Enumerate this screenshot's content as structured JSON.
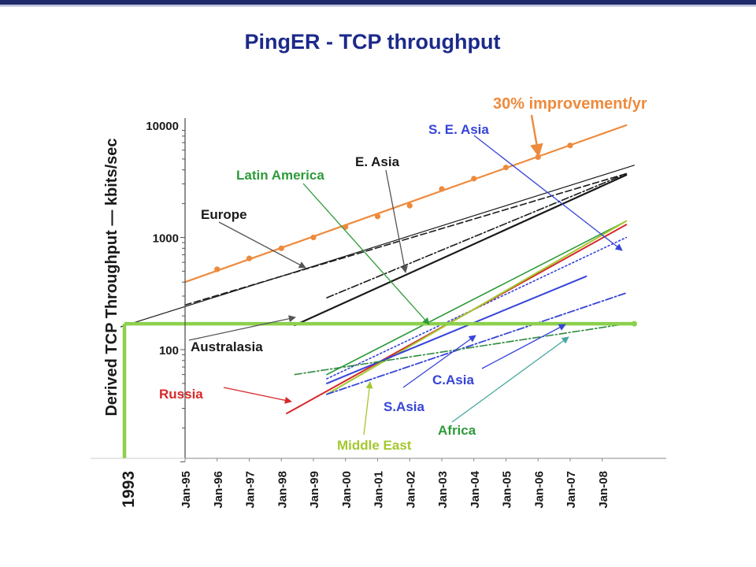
{
  "slide": {
    "title": "PingER - TCP throughput"
  },
  "colors": {
    "title": "#1c2a8a",
    "improvement": "#ee8a3c",
    "black": "#1a1a1a",
    "latin_america": "#2e9a3a",
    "se_asia": "#3644d8",
    "russia": "#d8282a",
    "middle_east": "#a4c830",
    "africa": "#2e8a3e",
    "green_box": "#8cd04c"
  },
  "chart_data": {
    "type": "line",
    "title": "PingER - TCP throughput",
    "ylabel": "Derived TCP Throughput — kbits/sec",
    "yscale": "log",
    "ylim": [
      10,
      12000
    ],
    "y_ticks": [
      {
        "value": 100,
        "label": "100"
      },
      {
        "value": 1000,
        "label": "1000"
      },
      {
        "value": 10000,
        "label": "10000"
      }
    ],
    "x_origin_label": "1993",
    "x_ticks": [
      "Jan-95",
      "Jan-96",
      "Jan-97",
      "Jan-98",
      "Jan-99",
      "Jan-00",
      "Jan-01",
      "Jan-02",
      "Jan-03",
      "Jan-04",
      "Jan-05",
      "Jan-06",
      "Jan-07",
      "Jan-08"
    ],
    "xlim": [
      "Jan-95",
      "Jan-09"
    ],
    "series": [
      {
        "name": "30% improvement/yr",
        "color": "#ee8a3c",
        "dash": "solid",
        "width": 2.2,
        "x": [
          "1995-01",
          "2008-10"
        ],
        "y": [
          400,
          10000
        ],
        "markers": {
          "x": [
            "1996-01",
            "1997-01",
            "1998-01",
            "1999-01",
            "2000-01",
            "2001-01",
            "2002-01",
            "2003-01",
            "2004-01",
            "2005-01",
            "2006-01",
            "2007-01"
          ],
          "y": [
            520,
            650,
            800,
            1000,
            1240,
            1540,
            1920,
            2700,
            3340,
            4200,
            5200,
            6600
          ]
        }
      },
      {
        "name": "Europe",
        "color": "#1a1a1a",
        "dash": "dash",
        "width": 1.6,
        "x": [
          "1995-01",
          "2008-10"
        ],
        "y": [
          250,
          3700
        ]
      },
      {
        "name": "",
        "color": "#1a1a1a",
        "dash": "solid",
        "width": 1.2,
        "x": [
          "1993-01",
          "2009-01"
        ],
        "y": [
          160,
          4400
        ]
      },
      {
        "name": "E. Asia",
        "color": "#1a1a1a",
        "dash": "dashdot",
        "width": 1.6,
        "x": [
          "1999-06",
          "2008-10"
        ],
        "y": [
          290,
          3700
        ]
      },
      {
        "name": "Australasia",
        "color": "#1a1a1a",
        "dash": "solid",
        "width": 2.2,
        "x": [
          "1998-06",
          "2008-10"
        ],
        "y": [
          165,
          3600
        ]
      },
      {
        "name": "Latin America",
        "color": "#2e9a3a",
        "dash": "solid",
        "width": 1.6,
        "x": [
          "1999-06",
          "2008-10"
        ],
        "y": [
          60,
          1400
        ]
      },
      {
        "name": "S. E. Asia",
        "color": "#3644d8",
        "dash": "dot",
        "width": 1.6,
        "x": [
          "1999-06",
          "2008-10"
        ],
        "y": [
          55,
          1000
        ]
      },
      {
        "name": "Russia",
        "color": "#d8282a",
        "dash": "solid",
        "width": 2.0,
        "x": [
          "1998-03",
          "2008-10"
        ],
        "y": [
          27,
          1300
        ]
      },
      {
        "name": "Middle East",
        "color": "#a4c830",
        "dash": "solid",
        "width": 2.0,
        "x": [
          "1999-06",
          "2008-10"
        ],
        "y": [
          40,
          1400
        ]
      },
      {
        "name": "S.Asia",
        "color": "#3644d8",
        "dash": "solid",
        "width": 2.0,
        "x": [
          "1999-06",
          "2007-07"
        ],
        "y": [
          50,
          450
        ]
      },
      {
        "name": "C.Asia",
        "color": "#3644d8",
        "dash": "dashdot",
        "width": 1.8,
        "x": [
          "1999-06",
          "2008-10"
        ],
        "y": [
          40,
          320
        ]
      },
      {
        "name": "Africa",
        "color": "#2e8a3e",
        "dash": "dashdot",
        "width": 1.6,
        "x": [
          "1998-06",
          "2008-10"
        ],
        "y": [
          60,
          170
        ]
      }
    ],
    "threshold_box": {
      "color": "#8cd04c",
      "y": 170,
      "x_start": "1993",
      "x_end": "2009-01"
    },
    "annotations": [
      "30% improvement/yr",
      "S. E. Asia",
      "E. Asia",
      "Latin America",
      "Europe",
      "Australasia",
      "Russia",
      "C.Asia",
      "S.Asia",
      "Africa",
      "Middle East"
    ]
  }
}
